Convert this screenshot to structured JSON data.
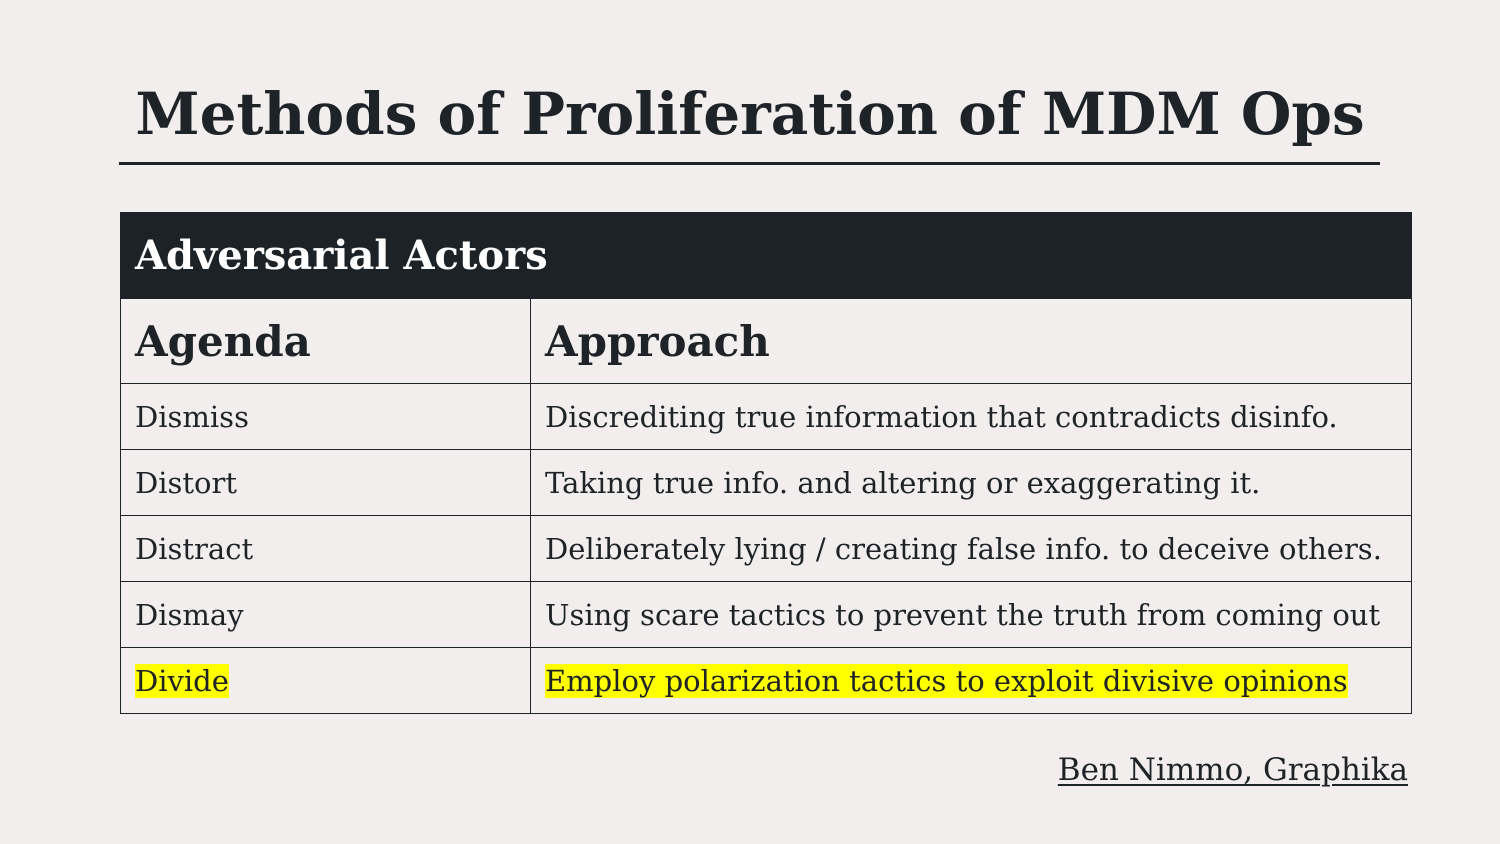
{
  "slide": {
    "title": "Methods of Proliferation of MDM Ops"
  },
  "table": {
    "banner": "Adversarial Actors",
    "headers": [
      "Agenda",
      "Approach"
    ],
    "rows": [
      {
        "agenda": "Dismiss",
        "approach": "Discrediting true information that contradicts disinfo.",
        "highlighted": false
      },
      {
        "agenda": "Distort",
        "approach": "Taking true info. and altering or exaggerating it.",
        "highlighted": false
      },
      {
        "agenda": "Distract",
        "approach": "Deliberately lying / creating false info. to deceive others.",
        "highlighted": false
      },
      {
        "agenda": "Dismay",
        "approach": "Using scare tactics to prevent the truth from coming out",
        "highlighted": false
      },
      {
        "agenda": "Divide",
        "approach": "Employ polarization tactics to exploit divisive opinions",
        "highlighted": true
      }
    ]
  },
  "credit": {
    "text": "Ben Nimmo, Graphika"
  },
  "colors": {
    "background": "#f1eeed",
    "text": "#1e2327",
    "banner": "#1c2225",
    "highlight": "#ffff00"
  }
}
